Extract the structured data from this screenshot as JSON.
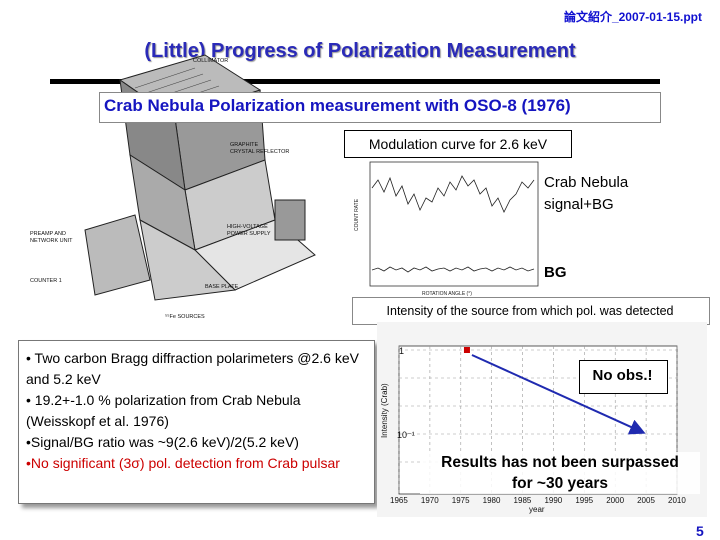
{
  "header": {
    "filename": "論文紹介_2007-01-15.ppt"
  },
  "slide": {
    "title": "(Little) Progress of Polarization Measurement",
    "subtitle": "Crab Nebula Polarization measurement with OSO-8 (1976)",
    "page_number": "5"
  },
  "instrument_diagram": {
    "labels": {
      "collimator": "COLLIMATOR",
      "graphite": "GRAPHITE",
      "crystal": "CRYSTAL REFLECTOR",
      "preamp": "PREAMP AND",
      "network": "NETWORK UNIT",
      "hv1": "HIGH-VOLTAGE",
      "hv2": "POWER SUPPLY",
      "counter": "COUNTER 1",
      "baseplate": "BASE PLATE",
      "source": "⁵⁵Fe SOURCES"
    }
  },
  "modulation_plot": {
    "label": "Modulation curve for 2.6 keV",
    "signal_label_line1": "Crab Nebula",
    "signal_label_line2": "signal+BG",
    "bg_label": "BG",
    "xlabel": "ROTATION ANGLE (°)"
  },
  "intensity_plot": {
    "label": "Intensity of the source from which pol. was detected",
    "ylabel": "Intensity (Crab)",
    "xlabel": "year",
    "y_ticks": [
      "1",
      "10⁻¹"
    ],
    "x_ticks": [
      "1965",
      "1970",
      "1975",
      "1980",
      "1985",
      "1990",
      "1995",
      "2000",
      "2005",
      "2010"
    ],
    "point_year": 1976,
    "point_intensity": 1,
    "point_color": "#cc0000",
    "arrow_color": "#1f2ab0",
    "no_obs": "No obs.!",
    "results_line1": "Results has not been surpassed",
    "results_line2": "for ~30 years"
  },
  "bullets": [
    "• Two carbon Bragg diffraction polarimeters @2.6 keV and 5.2 keV",
    "• 19.2+-1.0 % polarization from Crab Nebula (Weisskopf et al. 1976)",
    "•Signal/BG ratio was ~9(2.6 keV)/2(5.2 keV)"
  ],
  "bullet_highlight": "•No significant (3σ) pol. detection from Crab pulsar",
  "colors": {
    "title": "#2a2ab8",
    "accent_blue": "#1515c0",
    "highlight_red": "#cc0000"
  }
}
